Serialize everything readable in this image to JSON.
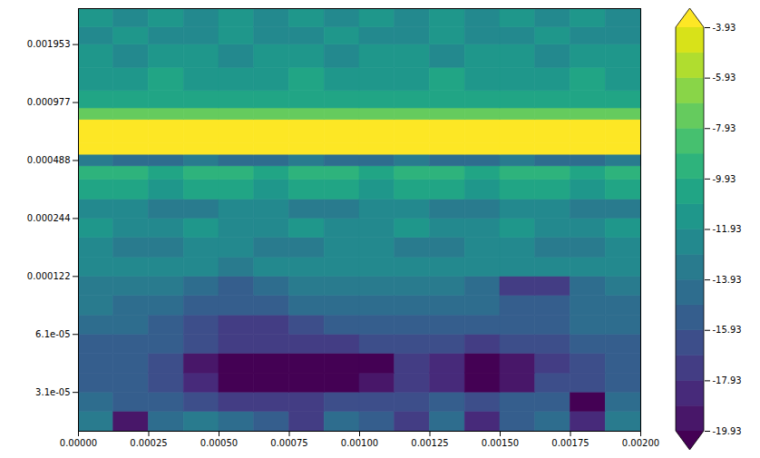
{
  "chart_data": {
    "type": "heatmap",
    "log": "y",
    "x_edges": [
      0,
      0.000125,
      0.00025,
      0.000375,
      0.0005,
      0.000625,
      0.00075,
      0.000875,
      0.001,
      0.001125,
      0.00125,
      0.001375,
      0.0015,
      0.001625,
      0.00175,
      0.001875,
      0.002
    ],
    "y_edges": [
      1.918e-05,
      2.428e-05,
      3.052e-05,
      3.836e-05,
      4.855e-05,
      6.104e-05,
      7.672e-05,
      9.711e-05,
      0.0001221,
      0.0001534,
      0.0001942,
      0.0002441,
      0.0003069,
      0.0003884,
      0.0004556,
      0.0005233,
      0.0006012,
      0.0007933,
      0.0009111,
      0.001122,
      0.00148,
      0.001953,
      0.002404,
      0.003002
    ],
    "z": [
      [
        -13,
        -19,
        -14,
        -13,
        -14,
        -15,
        -17,
        -14,
        -15,
        -17,
        -14,
        -18,
        -15,
        -14,
        -18,
        -13
      ],
      [
        -14,
        -15,
        -15,
        -16,
        -17,
        -17,
        -17,
        -16,
        -16,
        -16,
        -15,
        -16,
        -15,
        -15,
        -20,
        -14
      ],
      [
        -15,
        -15,
        -16,
        -18,
        -20,
        -21,
        -21,
        -21,
        -19,
        -17,
        -18,
        -20,
        -19,
        -16,
        -16,
        -15
      ],
      [
        -15,
        -15,
        -16,
        -19,
        -21,
        -21,
        -21,
        -21,
        -20,
        -17,
        -18,
        -21,
        -19,
        -17,
        -16,
        -15
      ],
      [
        -15,
        -15,
        -15,
        -16,
        -17,
        -17,
        -17,
        -17,
        -16,
        -16,
        -16,
        -17,
        -16,
        -16,
        -15,
        -15
      ],
      [
        -14,
        -14,
        -15,
        -16,
        -17,
        -17,
        -16,
        -15,
        -15,
        -15,
        -15,
        -15,
        -15,
        -15,
        -14,
        -14
      ],
      [
        -13,
        -14,
        -14,
        -15,
        -15,
        -15,
        -14,
        -14,
        -14,
        -14,
        -14,
        -14,
        -15,
        -15,
        -14,
        -14
      ],
      [
        -13,
        -13,
        -13,
        -14,
        -15,
        -14,
        -13,
        -13,
        -13,
        -13,
        -13,
        -14,
        -17,
        -17,
        -14,
        -13
      ],
      [
        -12,
        -12,
        -12,
        -12,
        -13,
        -12,
        -12,
        -12,
        -12,
        -12,
        -12,
        -12,
        -12,
        -12,
        -12,
        -12
      ],
      [
        -12,
        -13,
        -13,
        -12,
        -12,
        -13,
        -13,
        -12,
        -12,
        -13,
        -13,
        -12,
        -12,
        -13,
        -13,
        -12
      ],
      [
        -11,
        -12,
        -12,
        -11,
        -12,
        -12,
        -11,
        -12,
        -12,
        -11,
        -12,
        -12,
        -11,
        -12,
        -12,
        -11
      ],
      [
        -12,
        -12,
        -13,
        -13,
        -12,
        -12,
        -13,
        -13,
        -12,
        -12,
        -13,
        -13,
        -12,
        -12,
        -13,
        -13
      ],
      [
        -10,
        -10,
        -11,
        -10,
        -10,
        -11,
        -10,
        -10,
        -11,
        -10,
        -10,
        -11,
        -10,
        -10,
        -11,
        -10
      ],
      [
        -9,
        -9,
        -10,
        -9,
        -9,
        -10,
        -9,
        -9,
        -10,
        -9,
        -9,
        -10,
        -9,
        -9,
        -10,
        -9
      ],
      [
        -13,
        -14,
        -14,
        -13,
        -14,
        -14,
        -13,
        -14,
        -14,
        -13,
        -14,
        -14,
        -13,
        -14,
        -14,
        -13
      ],
      [
        -3.5,
        -3.5,
        -3.5,
        -3.5,
        -3.5,
        -3.5,
        -3.5,
        -3.5,
        -3.5,
        -3.5,
        -3.5,
        -3.5,
        -3.5,
        -3.5,
        -3.5,
        -3.5
      ],
      [
        -3,
        -3,
        -3,
        -3,
        -3,
        -3,
        -3,
        -3,
        -3,
        -3,
        -3,
        -3,
        -3,
        -3,
        -3,
        -3
      ],
      [
        -7,
        -7,
        -7,
        -7,
        -7,
        -7,
        -7,
        -7,
        -7,
        -7,
        -7,
        -7,
        -7,
        -7,
        -7,
        -7
      ],
      [
        -10,
        -10,
        -10,
        -10,
        -10,
        -10,
        -10,
        -10,
        -10,
        -10,
        -10,
        -10,
        -10,
        -10,
        -10,
        -10
      ],
      [
        -11,
        -11,
        -10,
        -11,
        -11,
        -11,
        -10,
        -11,
        -11,
        -11,
        -10,
        -11,
        -11,
        -11,
        -10,
        -11
      ],
      [
        -11,
        -12,
        -11,
        -11,
        -12,
        -11,
        -11,
        -12,
        -11,
        -11,
        -12,
        -11,
        -11,
        -12,
        -11,
        -11
      ],
      [
        -12,
        -11,
        -12,
        -12,
        -11,
        -12,
        -12,
        -11,
        -12,
        -12,
        -11,
        -12,
        -12,
        -11,
        -12,
        -12
      ],
      [
        -11,
        -12,
        -11,
        -12,
        -11,
        -12,
        -11,
        -12,
        -11,
        -12,
        -11,
        -12,
        -11,
        -12,
        -11,
        -12
      ]
    ],
    "xlim": [
      0,
      0.002
    ],
    "xticks": [
      {
        "value": 0,
        "label": "0.00000"
      },
      {
        "value": 0.00025,
        "label": "0.00025"
      },
      {
        "value": 0.0005,
        "label": "0.00050"
      },
      {
        "value": 0.00075,
        "label": "0.00075"
      },
      {
        "value": 0.001,
        "label": "0.00100"
      },
      {
        "value": 0.00125,
        "label": "0.00125"
      },
      {
        "value": 0.0015,
        "label": "0.00150"
      },
      {
        "value": 0.00175,
        "label": "0.00175"
      },
      {
        "value": 0.002,
        "label": "0.00200"
      }
    ],
    "ylim": [
      1.918e-05,
      0.003002
    ],
    "yticks": [
      {
        "value": 3.0517578125e-05,
        "label": "3.1e-05"
      },
      {
        "value": 6.103515625e-05,
        "label": "6.1e-05"
      },
      {
        "value": 0.0001220703125,
        "label": "0.000122"
      },
      {
        "value": 0.000244140625,
        "label": "0.000244"
      },
      {
        "value": 0.00048828125,
        "label": "0.000488"
      },
      {
        "value": 0.0009765625,
        "label": "0.000977"
      },
      {
        "value": 0.001953125,
        "label": "0.001953"
      }
    ],
    "colorbar": {
      "lim": [
        -19.93,
        -3.93
      ],
      "ticks": [
        -19.93,
        -17.93,
        -15.93,
        -13.93,
        -11.93,
        -9.93,
        -7.93,
        -5.93,
        -3.93
      ],
      "levels": [
        -19.93,
        -18.93,
        -17.93,
        -16.93,
        -15.93,
        -14.93,
        -13.93,
        -12.93,
        -11.93,
        -10.93,
        -9.93,
        -8.93,
        -7.93,
        -6.93,
        -5.93,
        -4.93,
        -3.93
      ]
    }
  }
}
